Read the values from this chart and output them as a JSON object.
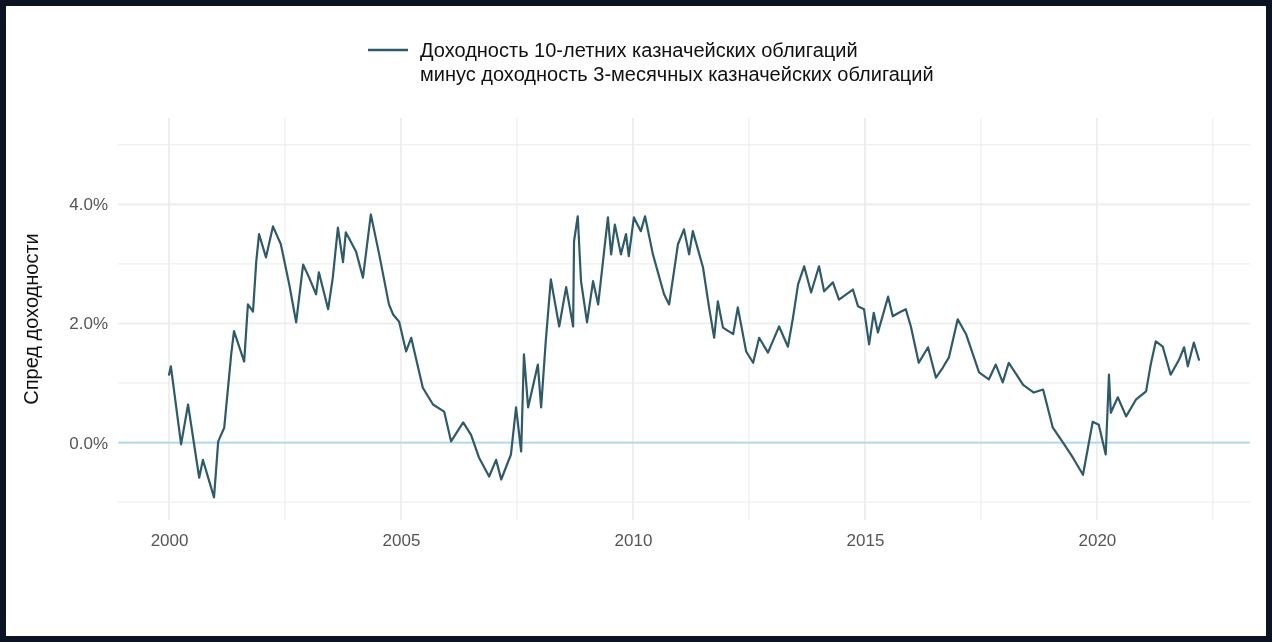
{
  "chart_data": {
    "type": "line",
    "ylabel": "Спред доходности",
    "series": [
      {
        "name": "Доходность 10-летних казначейских облигаций\nминус доходность 3-месячных казначейских облигаций",
        "color": "#2e5a6a",
        "x": [
          2000.0,
          2000.04,
          2000.26,
          2000.41,
          2000.65,
          2000.73,
          2000.97,
          2001.06,
          2001.19,
          2001.34,
          2001.4,
          2001.62,
          2001.7,
          2001.81,
          2001.88,
          2001.94,
          2002.09,
          2002.24,
          2002.41,
          2002.59,
          2002.74,
          2002.89,
          2003.02,
          2003.17,
          2003.23,
          2003.43,
          2003.53,
          2003.64,
          2003.75,
          2003.81,
          2004.03,
          2004.18,
          2004.35,
          2004.53,
          2004.74,
          2004.83,
          2004.96,
          2005.11,
          2005.22,
          2005.47,
          2005.69,
          2005.93,
          2006.08,
          2006.34,
          2006.51,
          2006.68,
          2006.9,
          2007.05,
          2007.16,
          2007.37,
          2007.48,
          2007.59,
          2007.65,
          2007.74,
          2007.95,
          2008.02,
          2008.12,
          2008.23,
          2008.41,
          2008.56,
          2008.71,
          2008.73,
          2008.81,
          2008.88,
          2009.01,
          2009.14,
          2009.25,
          2009.46,
          2009.53,
          2009.61,
          2009.74,
          2009.85,
          2009.91,
          2010.02,
          2010.17,
          2010.26,
          2010.43,
          2010.67,
          2010.78,
          2010.97,
          2011.1,
          2011.21,
          2011.29,
          2011.51,
          2011.64,
          2011.75,
          2011.83,
          2011.94,
          2012.16,
          2012.26,
          2012.44,
          2012.59,
          2012.72,
          2012.91,
          2013.15,
          2013.34,
          2013.45,
          2013.56,
          2013.69,
          2013.84,
          2014.01,
          2014.12,
          2014.31,
          2014.44,
          2014.74,
          2014.85,
          2014.98,
          2015.09,
          2015.19,
          2015.28,
          2015.5,
          2015.6,
          2015.73,
          2015.88,
          2015.99,
          2016.16,
          2016.36,
          2016.53,
          2016.68,
          2016.81,
          2017.0,
          2017.18,
          2017.46,
          2017.67,
          2017.82,
          2017.97,
          2018.1,
          2018.41,
          2018.64,
          2018.84,
          2019.05,
          2019.27,
          2019.48,
          2019.7,
          2019.91,
          2020.04,
          2020.19,
          2020.26,
          2020.3,
          2020.45,
          2020.63,
          2020.84,
          2021.06,
          2021.16,
          2021.27,
          2021.42,
          2021.59,
          2021.77,
          2021.88,
          2021.96,
          2022.09,
          2022.2
        ],
        "values": [
          1.14,
          1.28,
          -0.03,
          0.64,
          -0.59,
          -0.29,
          -0.92,
          0.02,
          0.25,
          1.48,
          1.87,
          1.36,
          2.32,
          2.2,
          3.04,
          3.5,
          3.11,
          3.63,
          3.33,
          2.66,
          2.02,
          2.99,
          2.77,
          2.49,
          2.86,
          2.24,
          2.77,
          3.61,
          3.03,
          3.53,
          3.21,
          2.77,
          3.83,
          3.16,
          2.32,
          2.15,
          2.03,
          1.53,
          1.76,
          0.92,
          0.64,
          0.52,
          0.02,
          0.34,
          0.13,
          -0.25,
          -0.57,
          -0.29,
          -0.62,
          -0.2,
          0.59,
          -0.15,
          1.48,
          0.59,
          1.31,
          0.59,
          1.7,
          2.74,
          1.95,
          2.61,
          1.95,
          3.38,
          3.8,
          2.71,
          2.02,
          2.71,
          2.32,
          3.78,
          3.16,
          3.66,
          3.16,
          3.5,
          3.13,
          3.78,
          3.55,
          3.8,
          3.16,
          2.49,
          2.32,
          3.33,
          3.58,
          3.16,
          3.55,
          2.94,
          2.27,
          1.76,
          2.37,
          1.93,
          1.82,
          2.27,
          1.53,
          1.34,
          1.76,
          1.51,
          1.95,
          1.61,
          2.1,
          2.66,
          2.96,
          2.52,
          2.96,
          2.54,
          2.69,
          2.4,
          2.57,
          2.29,
          2.24,
          1.65,
          2.18,
          1.85,
          2.45,
          2.12,
          2.18,
          2.24,
          1.95,
          1.34,
          1.6,
          1.09,
          1.26,
          1.43,
          2.07,
          1.82,
          1.18,
          1.06,
          1.31,
          1.01,
          1.34,
          0.97,
          0.84,
          0.89,
          0.25,
          0.0,
          -0.25,
          -0.54,
          0.35,
          0.3,
          -0.2,
          1.14,
          0.5,
          0.76,
          0.44,
          0.72,
          0.86,
          1.31,
          1.7,
          1.61,
          1.14,
          1.39,
          1.6,
          1.28,
          1.68,
          1.39
        ]
      }
    ],
    "xlim": [
      1998.9,
      2023.3
    ],
    "xticks": [
      2000,
      {
        "value": 2002.5,
        "label": null
      },
      2005,
      {
        "value": 2007.5,
        "label": null
      },
      2010,
      {
        "value": 2012.5,
        "label": null
      },
      2015,
      {
        "value": 2017.5,
        "label": null
      },
      2020,
      {
        "value": 2022.5,
        "label": null
      }
    ],
    "ylim": [
      -1.3,
      5.45
    ],
    "yticks": [
      {
        "value": -1,
        "label": null
      },
      {
        "value": 0,
        "label": "0.0%"
      },
      {
        "value": 1,
        "label": null
      },
      {
        "value": 2,
        "label": "2.0%"
      },
      {
        "value": 3,
        "label": null
      },
      {
        "value": 4,
        "label": "4.0%"
      },
      {
        "value": 5,
        "label": null
      }
    ],
    "ref_lines": [
      {
        "axis": "y",
        "value": 0,
        "label": null,
        "color": "#a9d9ee"
      }
    ],
    "grid": true,
    "legend": "top",
    "line_style": "solid",
    "marker": "none"
  }
}
